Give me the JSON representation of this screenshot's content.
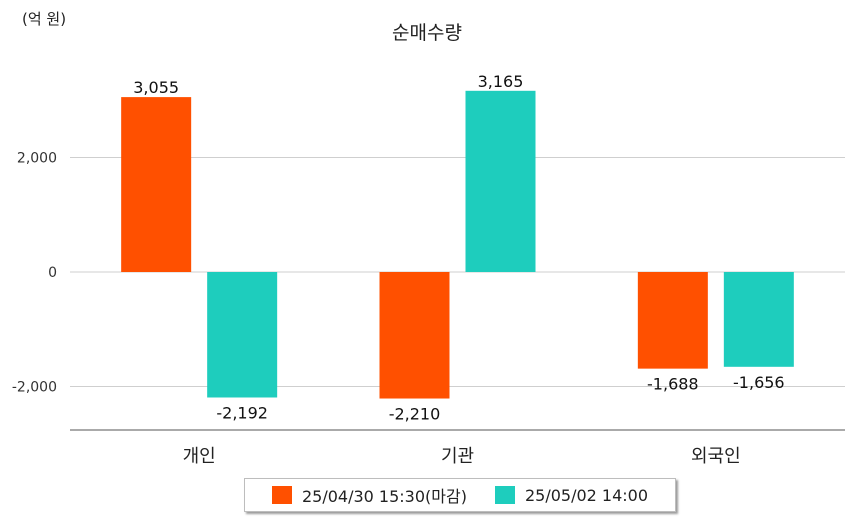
{
  "chart_data": {
    "type": "bar",
    "title": "순매수량",
    "unit_label": "(억 원)",
    "categories": [
      "개인",
      "기관",
      "외국인"
    ],
    "series": [
      {
        "name": "25/04/30 15:30(마감)",
        "color": "#ff5000",
        "values": [
          3055,
          -2210,
          -1688
        ]
      },
      {
        "name": "25/05/02 14:00",
        "color": "#1ecdbd",
        "values": [
          -2192,
          3165,
          -1656
        ]
      }
    ],
    "value_labels": [
      [
        "3,055",
        "-2,210",
        "-1,688"
      ],
      [
        "-2,192",
        "3,165",
        "-1,656"
      ]
    ],
    "y_ticks": [
      -2000,
      0,
      2000
    ],
    "y_tick_labels": [
      "-2,000",
      "0",
      "2,000"
    ],
    "ylim": [
      -2700,
      3800
    ],
    "grid": true,
    "legend_position": "bottom"
  }
}
